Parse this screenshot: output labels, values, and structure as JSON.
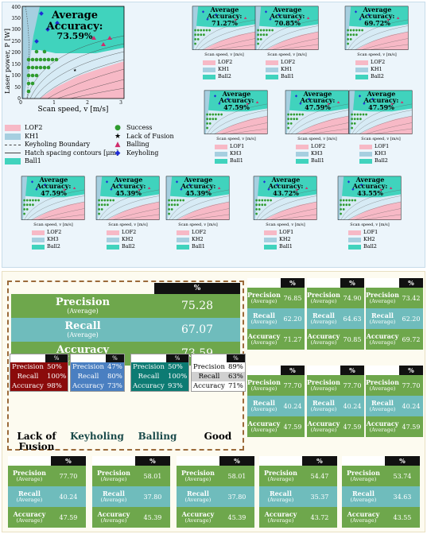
{
  "main_plot": {
    "accuracy_title": "Average Accuracy:",
    "accuracy_value": "73.59%",
    "xlabel": "Scan speed, v [m/s]",
    "ylabel": "Laser power, P [W]",
    "xticks": [
      "0",
      "1",
      "2",
      "3"
    ],
    "yticks": [
      "0",
      "50",
      "100",
      "150",
      "200",
      "250",
      "300",
      "350",
      "400"
    ]
  },
  "main_legend": {
    "regions": [
      "LOF2",
      "KH1",
      "Keyholing Boundary",
      "Hatch spacing contours [μm]",
      "Ball1"
    ],
    "markers": [
      "Success",
      "Lack of Fusion",
      "Balling",
      "Keyholing"
    ]
  },
  "small_plots": [
    {
      "acc": "71.27%",
      "legend": [
        "LOF2",
        "KH1",
        "Ball2"
      ]
    },
    {
      "acc": "70.85%",
      "legend": [
        "LOF2",
        "KH1",
        "Ball1"
      ]
    },
    {
      "acc": "69.72%",
      "legend": [
        "LOF2",
        "KH1",
        "Ball2"
      ]
    },
    {
      "acc": "47.59%",
      "legend": [
        "LOF1",
        "KH3",
        "Ball1"
      ]
    },
    {
      "acc": "47.59%",
      "legend": [
        "LOF2",
        "KH3",
        "Ball1"
      ]
    },
    {
      "acc": "47.59%",
      "legend": [
        "LOF1",
        "KH3",
        "Ball2"
      ]
    },
    {
      "acc": "47.59%",
      "legend": [
        "LOF2",
        "KH3",
        "Ball2"
      ]
    },
    {
      "acc": "45.39%",
      "legend": [
        "LOF2",
        "KH2",
        "Ball2"
      ]
    },
    {
      "acc": "45.39%",
      "legend": [
        "LOF2",
        "KH2",
        "Ball1"
      ]
    },
    {
      "acc": "43.72%",
      "legend": [
        "LOF1",
        "KH2",
        "Ball1"
      ]
    },
    {
      "acc": "43.55%",
      "legend": [
        "LOF1",
        "KH2",
        "Ball2"
      ]
    }
  ],
  "small_plot_common": {
    "title": "Average Accuracy:",
    "xlabel": "Scan speed, v [m/s]",
    "ylabel": "Laser power, P [W]"
  },
  "main_table": {
    "header": "%",
    "precision_label": "Precision",
    "recall_label": "Recall",
    "accuracy_label": "Accuracy",
    "avg": "(Average)",
    "precision": "75.28",
    "recall": "67.07",
    "accuracy": "73.59"
  },
  "class_tables": [
    {
      "name": "Lack of Fusion",
      "precision": "50%",
      "recall": "100%",
      "accuracy": "98%",
      "color": "#8b0b0b"
    },
    {
      "name": "Keyholing",
      "precision": "47%",
      "recall": "80%",
      "accuracy": "73%",
      "color": "#4a7fc1"
    },
    {
      "name": "Balling",
      "precision": "50%",
      "recall": "100%",
      "accuracy": "93%",
      "color": "#0d7b73"
    },
    {
      "name": "Good",
      "precision": "89%",
      "recall": "63%",
      "accuracy": "71%",
      "color": "#ffffff"
    }
  ],
  "class_common": {
    "header": "%",
    "precision": "Precision",
    "recall": "Recall",
    "accuracy": "Accuracy"
  },
  "metric_tables": [
    {
      "precision": "76.85",
      "recall": "62.20",
      "accuracy": "71.27"
    },
    {
      "precision": "74.90",
      "recall": "64.63",
      "accuracy": "70.85"
    },
    {
      "precision": "73.42",
      "recall": "62.20",
      "accuracy": "69.72"
    },
    {
      "precision": "77.70",
      "recall": "40.24",
      "accuracy": "47.59"
    },
    {
      "precision": "77.70",
      "recall": "40.24",
      "accuracy": "47.59"
    },
    {
      "precision": "77.70",
      "recall": "40.24",
      "accuracy": "47.59"
    },
    {
      "precision": "77.70",
      "recall": "40.24",
      "accuracy": "47.59"
    },
    {
      "precision": "58.01",
      "recall": "37.80",
      "accuracy": "45.39"
    },
    {
      "precision": "58.01",
      "recall": "37.80",
      "accuracy": "45.39"
    },
    {
      "precision": "54.47",
      "recall": "35.37",
      "accuracy": "43.72"
    },
    {
      "precision": "53.74",
      "recall": "34.63",
      "accuracy": "43.55"
    }
  ],
  "metric_common": {
    "header": "%",
    "precision": "Precision",
    "recall": "Recall",
    "accuracy": "Accuracy",
    "avg": "(Average)"
  }
}
